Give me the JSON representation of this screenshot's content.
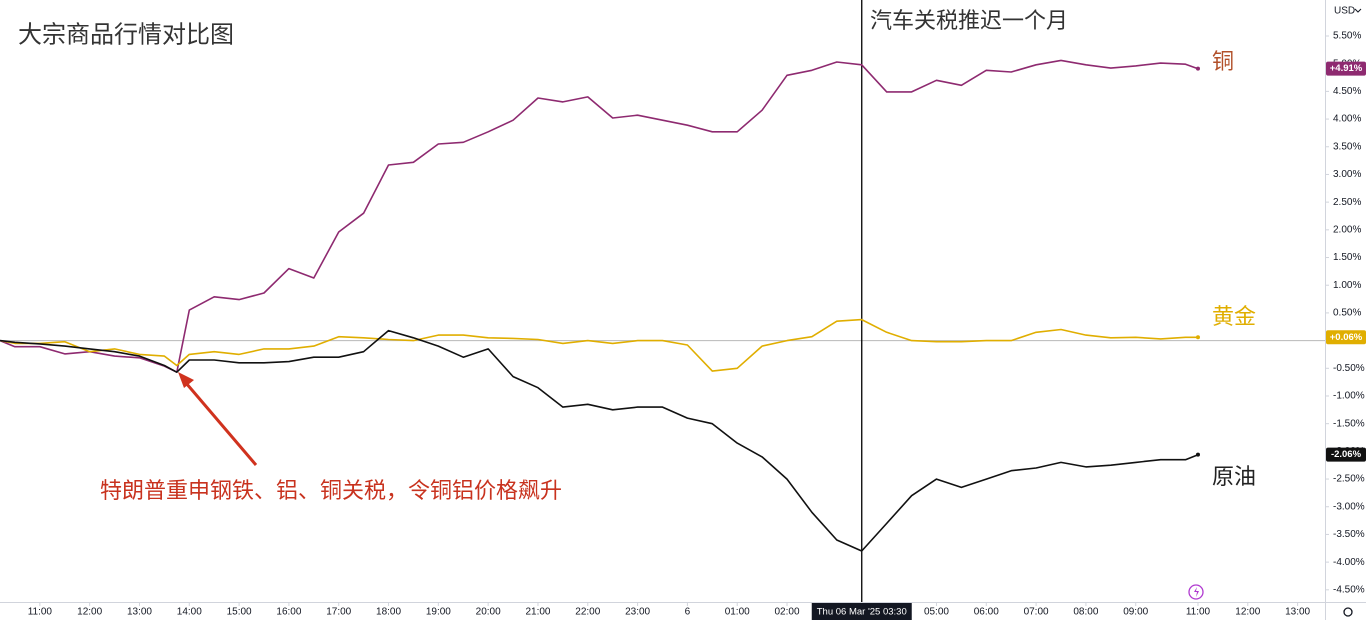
{
  "chart_data": {
    "type": "line",
    "title": "大宗商品行情对比图",
    "currency": "USD",
    "x": [
      0.2,
      0.5,
      1,
      1.5,
      2,
      2.5,
      3,
      3.5,
      3.75,
      4,
      4.5,
      5,
      5.5,
      6,
      6.5,
      7,
      7.5,
      8,
      8.5,
      9,
      9.5,
      10,
      10.5,
      11,
      11.5,
      12,
      12.5,
      13,
      13.5,
      14,
      14.5,
      15,
      15.5,
      16,
      16.5,
      17,
      17.5,
      18,
      18.5,
      19,
      19.5,
      20,
      20.5,
      21,
      21.5,
      22,
      22.5,
      23,
      23.5,
      24,
      24.25
    ],
    "series": [
      {
        "name": "铜",
        "color": "#8e2a70",
        "label_color": "#b2502a",
        "last_label": "+4.91%",
        "values": [
          0,
          -0.11,
          -0.11,
          -0.24,
          -0.2,
          -0.28,
          -0.31,
          -0.46,
          -0.57,
          0.55,
          0.79,
          0.74,
          0.86,
          1.3,
          1.13,
          1.96,
          2.3,
          3.17,
          3.22,
          3.55,
          3.58,
          3.77,
          3.98,
          4.38,
          4.31,
          4.4,
          4.02,
          4.07,
          3.98,
          3.89,
          3.77,
          3.77,
          4.16,
          4.79,
          4.88,
          5.03,
          4.98,
          4.49,
          4.49,
          4.7,
          4.61,
          4.88,
          4.85,
          4.98,
          5.06,
          4.98,
          4.92,
          4.96,
          5.01,
          4.99,
          4.91
        ]
      },
      {
        "name": "黄金",
        "color": "#e0ae00",
        "label_color": "#e0ae00",
        "last_label": "+0.06%",
        "values": [
          0,
          -0.05,
          -0.05,
          -0.02,
          -0.2,
          -0.15,
          -0.25,
          -0.28,
          -0.45,
          -0.25,
          -0.2,
          -0.25,
          -0.15,
          -0.15,
          -0.1,
          0.07,
          0.05,
          0.02,
          0,
          0.1,
          0.1,
          0.05,
          0.04,
          0.02,
          -0.05,
          0,
          -0.05,
          0,
          0,
          -0.08,
          -0.55,
          -0.5,
          -0.1,
          0,
          0.07,
          0.35,
          0.38,
          0.15,
          0,
          -0.02,
          -0.02,
          0,
          0,
          0.15,
          0.2,
          0.1,
          0.05,
          0.06,
          0.03,
          0.06,
          0.06
        ]
      },
      {
        "name": "原油",
        "color": "#111111",
        "label_color": "#222222",
        "last_label": "-2.06%",
        "values": [
          0,
          -0.03,
          -0.06,
          -0.1,
          -0.15,
          -0.2,
          -0.28,
          -0.45,
          -0.57,
          -0.35,
          -0.35,
          -0.4,
          -0.4,
          -0.38,
          -0.3,
          -0.3,
          -0.2,
          0.18,
          0.05,
          -0.1,
          -0.3,
          -0.15,
          -0.65,
          -0.85,
          -1.2,
          -1.15,
          -1.25,
          -1.2,
          -1.2,
          -1.4,
          -1.5,
          -1.85,
          -2.1,
          -2.5,
          -3.1,
          -3.6,
          -3.8,
          -3.3,
          -2.8,
          -2.5,
          -2.65,
          -2.5,
          -2.35,
          -2.3,
          -2.2,
          -2.28,
          -2.25,
          -2.2,
          -2.15,
          -2.15,
          -2.06
        ]
      }
    ],
    "xlim": [
      0.2,
      26.8
    ],
    "ylim": [
      -4.72,
      6.15
    ],
    "baseline": 0,
    "yticks": [
      {
        "value": 5.5,
        "label": "5.50%"
      },
      {
        "value": 5,
        "label": "5.00%"
      },
      {
        "value": 4.5,
        "label": "4.50%"
      },
      {
        "value": 4,
        "label": "4.00%"
      },
      {
        "value": 3.5,
        "label": "3.50%"
      },
      {
        "value": 3,
        "label": "3.00%"
      },
      {
        "value": 2.5,
        "label": "2.50%"
      },
      {
        "value": 2,
        "label": "2.00%"
      },
      {
        "value": 1.5,
        "label": "1.50%"
      },
      {
        "value": 1,
        "label": "1.00%"
      },
      {
        "value": 0.5,
        "label": "0.50%"
      },
      {
        "value": -0.5,
        "label": "-0.50%"
      },
      {
        "value": -1,
        "label": "-1.00%"
      },
      {
        "value": -1.5,
        "label": "-1.50%"
      },
      {
        "value": -2,
        "label": "-2.00%"
      },
      {
        "value": -2.5,
        "label": "-2.50%"
      },
      {
        "value": -3,
        "label": "-3.00%"
      },
      {
        "value": -3.5,
        "label": "-3.50%"
      },
      {
        "value": -4,
        "label": "-4.00%"
      },
      {
        "value": -4.5,
        "label": "-4.50%"
      }
    ],
    "xticks": [
      {
        "value": 1,
        "label": "11:00"
      },
      {
        "value": 2,
        "label": "12:00"
      },
      {
        "value": 3,
        "label": "13:00"
      },
      {
        "value": 4,
        "label": "14:00"
      },
      {
        "value": 5,
        "label": "15:00"
      },
      {
        "value": 6,
        "label": "16:00"
      },
      {
        "value": 7,
        "label": "17:00"
      },
      {
        "value": 8,
        "label": "18:00"
      },
      {
        "value": 9,
        "label": "19:00"
      },
      {
        "value": 10,
        "label": "20:00"
      },
      {
        "value": 11,
        "label": "21:00"
      },
      {
        "value": 12,
        "label": "22:00"
      },
      {
        "value": 13,
        "label": "23:00"
      },
      {
        "value": 14,
        "label": "6"
      },
      {
        "value": 15,
        "label": "01:00"
      },
      {
        "value": 16,
        "label": "02:00"
      },
      {
        "value": 19,
        "label": "05:00"
      },
      {
        "value": 20,
        "label": "06:00"
      },
      {
        "value": 21,
        "label": "07:00"
      },
      {
        "value": 22,
        "label": "08:00"
      },
      {
        "value": 23,
        "label": "09:00"
      },
      {
        "value": 24.25,
        "label": "11:00"
      },
      {
        "value": 25.25,
        "label": "12:00"
      },
      {
        "value": 26.25,
        "label": "13:00"
      }
    ],
    "crosshair": {
      "x": 17.5,
      "label": "Thu 06 Mar '25  03:30"
    },
    "annotations": [
      {
        "text": "汽车关税推迟一个月"
      },
      {
        "text": "特朗普重申钢铁、铝、铜关税，令铜铝价格飙升"
      }
    ]
  }
}
